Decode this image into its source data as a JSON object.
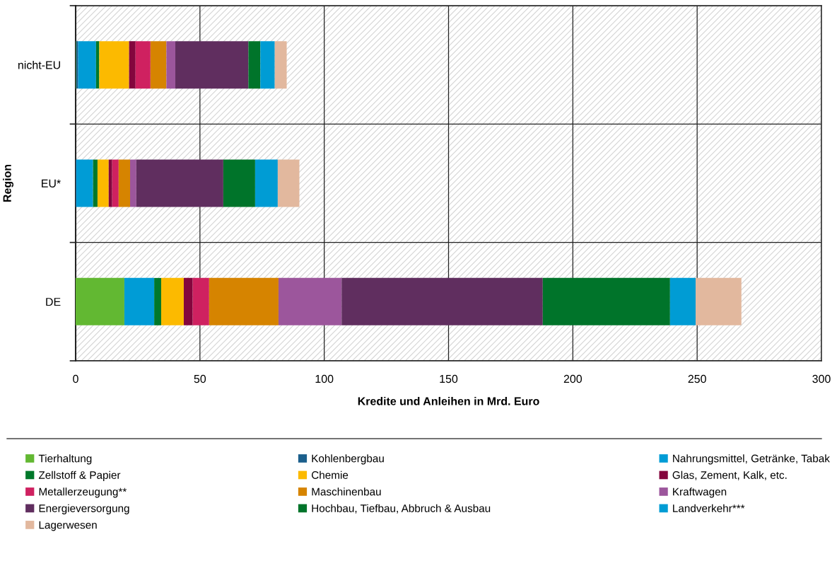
{
  "chart_data": {
    "type": "bar",
    "orientation": "horizontal",
    "stacked": true,
    "xlabel": "Kredite und Anleihen in Mrd. Euro",
    "ylabel": "Region",
    "categories": [
      "nicht-EU",
      "EU*",
      "DE"
    ],
    "xlim": [
      0,
      300
    ],
    "xticks": [
      0,
      50,
      100,
      150,
      200,
      250,
      300
    ],
    "grid": true,
    "legend": "bottom",
    "series": [
      {
        "name": "Tierhaltung",
        "color": "#62b832",
        "values": [
          0.2,
          0,
          19.6
        ]
      },
      {
        "name": "Kohlenbergbau",
        "color": "#1b5f8c",
        "values": [
          0.8,
          0.3,
          0
        ]
      },
      {
        "name": "Nahrungsmittel, Getränke, Tabak",
        "color": "#009cd6",
        "values": [
          7.2,
          6.7,
          12.0
        ]
      },
      {
        "name": "Zellstoff & Papier",
        "color": "#00782a",
        "values": [
          1.3,
          1.8,
          2.8
        ]
      },
      {
        "name": "Chemie",
        "color": "#fcba00",
        "values": [
          12.0,
          4.5,
          9.1
        ]
      },
      {
        "name": "Glas, Zement, Kalk, etc.",
        "color": "#84063d",
        "values": [
          2.6,
          1.4,
          3.6
        ]
      },
      {
        "name": "Metallerzeugung**",
        "color": "#cf2160",
        "values": [
          6.0,
          2.6,
          6.6
        ]
      },
      {
        "name": "Maschinenbau",
        "color": "#d68400",
        "values": [
          6.4,
          4.6,
          27.9
        ]
      },
      {
        "name": "Kraftwagen",
        "color": "#9c569c",
        "values": [
          3.6,
          2.5,
          25.4
        ]
      },
      {
        "name": "Energieversorgung",
        "color": "#602e5f",
        "values": [
          29.4,
          35.0,
          80.9
        ]
      },
      {
        "name": "Hochbau, Tiefbau, Abbruch & Ausbau",
        "color": "#00742a",
        "values": [
          4.8,
          12.8,
          51.2
        ]
      },
      {
        "name": "Landverkehr***",
        "color": "#009cd4",
        "values": [
          5.8,
          9.1,
          10.3
        ]
      },
      {
        "name": "Lagerwesen",
        "color": "#e2b89e",
        "values": [
          4.8,
          8.7,
          18.4
        ]
      }
    ]
  }
}
